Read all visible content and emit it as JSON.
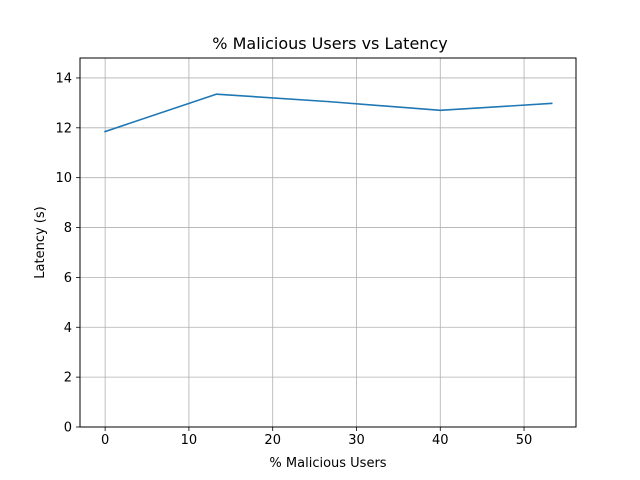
{
  "chart_data": {
    "type": "line",
    "title": "% Malicious Users vs Latency",
    "xlabel": "% Malicious Users",
    "ylabel": "Latency (s)",
    "xlim": [
      -3,
      56.2
    ],
    "ylim": [
      0,
      14.8
    ],
    "xticks": [
      0,
      10,
      20,
      30,
      40,
      50
    ],
    "yticks": [
      0,
      2,
      4,
      6,
      8,
      10,
      12,
      14
    ],
    "grid": true,
    "series": [
      {
        "color": "#1f77b4",
        "x": [
          0,
          13.3,
          26.7,
          40,
          53.3
        ],
        "y": [
          11.85,
          13.35,
          13.05,
          12.7,
          12.98
        ]
      }
    ]
  }
}
